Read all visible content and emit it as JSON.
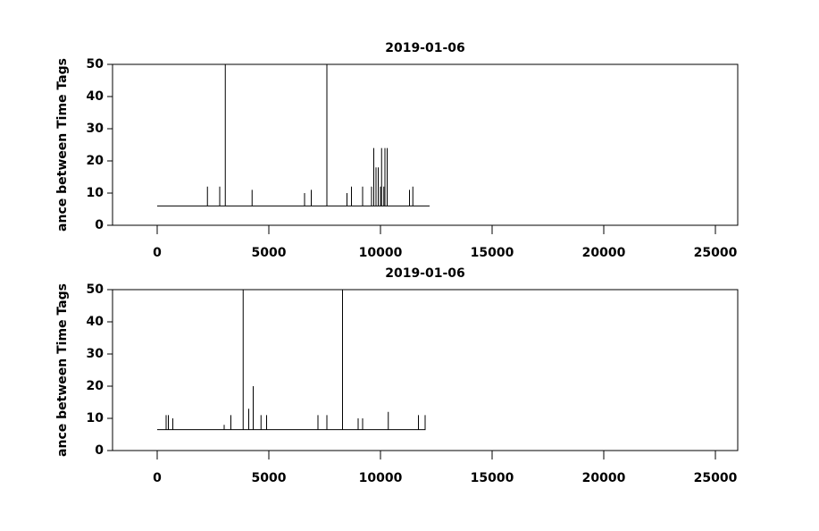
{
  "chart_data": [
    {
      "type": "line",
      "title": "2019-01-06",
      "y_label": "ance between Time Tags",
      "color": "#000000",
      "grid": false,
      "xlim": [
        -2000,
        26000
      ],
      "xticks": [
        0,
        5000,
        10000,
        15000,
        20000,
        25000
      ],
      "ylim": [
        0,
        50
      ],
      "yticks": [
        0,
        10,
        20,
        30,
        40,
        50
      ],
      "x": [
        0,
        2250,
        2250,
        2250,
        2800,
        2800,
        2800,
        3050,
        3050,
        3050,
        4250,
        4250,
        4250,
        6600,
        6600,
        6600,
        6900,
        6900,
        6900,
        7600,
        7600,
        7600,
        8500,
        8500,
        8500,
        8700,
        8700,
        8700,
        9200,
        9200,
        9200,
        9600,
        9600,
        9600,
        9700,
        9700,
        9700,
        9800,
        9800,
        9800,
        9900,
        9900,
        9900,
        10000,
        10000,
        10000,
        10050,
        10050,
        10050,
        10150,
        10150,
        10150,
        10200,
        10200,
        10200,
        10300,
        10300,
        10300,
        11300,
        11300,
        11300,
        11450,
        11450,
        11450,
        12200
      ],
      "values": [
        6,
        6,
        12,
        6,
        6,
        12,
        6,
        6,
        50,
        6,
        6,
        11,
        6,
        6,
        10,
        6,
        6,
        11,
        6,
        6,
        50,
        6,
        6,
        10,
        6,
        6,
        12,
        6,
        6,
        12,
        6,
        6,
        12,
        6,
        6,
        24,
        6,
        6,
        18,
        6,
        6,
        18,
        6,
        6,
        12,
        6,
        6,
        24,
        6,
        6,
        12,
        6,
        6,
        24,
        6,
        6,
        24,
        6,
        6,
        11,
        6,
        6,
        12,
        6,
        6
      ]
    },
    {
      "type": "line",
      "title": "2019-01-06",
      "y_label": "ance between Time Tags",
      "color": "#000000",
      "grid": false,
      "xlim": [
        -2000,
        26000
      ],
      "xticks": [
        0,
        5000,
        10000,
        15000,
        20000,
        25000
      ],
      "ylim": [
        0,
        50
      ],
      "yticks": [
        0,
        10,
        20,
        30,
        40,
        50
      ],
      "x": [
        0,
        400,
        400,
        400,
        500,
        500,
        500,
        700,
        700,
        700,
        3000,
        3000,
        3000,
        3300,
        3300,
        3300,
        3850,
        3850,
        3850,
        4100,
        4100,
        4100,
        4300,
        4300,
        4300,
        4650,
        4650,
        4650,
        4900,
        4900,
        4900,
        7200,
        7200,
        7200,
        7600,
        7600,
        7600,
        8300,
        8300,
        8300,
        9000,
        9000,
        9000,
        9200,
        9200,
        9200,
        10350,
        10350,
        10350,
        11700,
        11700,
        11700,
        12000,
        12000
      ],
      "values": [
        6.5,
        6.5,
        11,
        6.5,
        6.5,
        11,
        6.5,
        6.5,
        10,
        6.5,
        6.5,
        8,
        6.5,
        6.5,
        11,
        6.5,
        6.5,
        50,
        6.5,
        6.5,
        13,
        6.5,
        6.5,
        20,
        6.5,
        6.5,
        11,
        6.5,
        6.5,
        11,
        6.5,
        6.5,
        11,
        6.5,
        6.5,
        11,
        6.5,
        6.5,
        50,
        6.5,
        6.5,
        10,
        6.5,
        6.5,
        10,
        6.5,
        6.5,
        12,
        6.5,
        6.5,
        11,
        6.5,
        6.5,
        11
      ]
    }
  ]
}
